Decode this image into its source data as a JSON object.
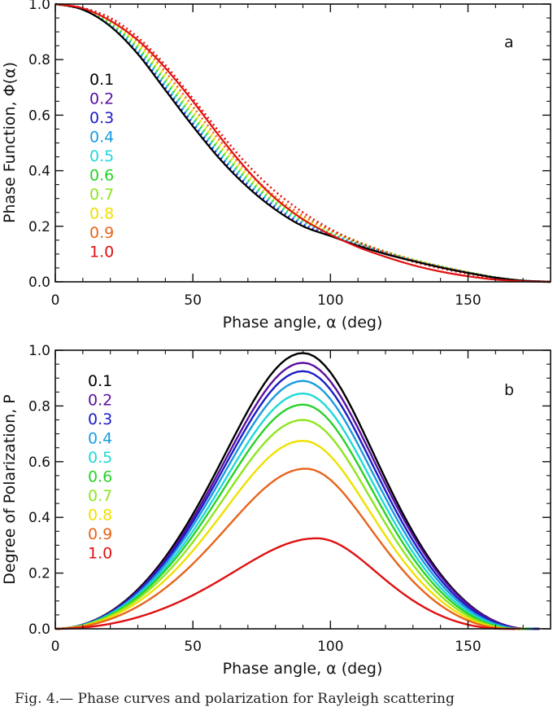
{
  "figure": {
    "caption": "Fig. 4.— Phase curves and polarization for Rayleigh scattering"
  },
  "colors": {
    "0.1": "#000000",
    "0.2": "#5a0f9e",
    "0.3": "#1c1cc8",
    "0.4": "#1a9be0",
    "0.5": "#20d8d8",
    "0.6": "#28d228",
    "0.7": "#8ee61e",
    "0.8": "#f0e000",
    "0.9": "#e8641a",
    "1.0": "#e01010"
  },
  "chart_data": [
    {
      "type": "line",
      "panel_letter": "a",
      "xlabel": "Phase angle, α (deg)",
      "ylabel": "Phase Function, Φ(α)",
      "xlim": [
        0,
        180
      ],
      "ylim": [
        0,
        1.0
      ],
      "xticks": [
        0,
        50,
        100,
        150
      ],
      "yticks": [
        0.0,
        0.2,
        0.4,
        0.6,
        0.8,
        1.0
      ],
      "ytick_labels": [
        "0.0",
        "0.2",
        "0.4",
        "0.6",
        "0.8",
        "1.0"
      ],
      "legend": [
        "0.1",
        "0.2",
        "0.3",
        "0.4",
        "0.5",
        "0.6",
        "0.7",
        "0.8",
        "0.9",
        "1.0"
      ],
      "legend_position": "upper-left",
      "x": [
        0,
        10,
        20,
        30,
        40,
        50,
        60,
        70,
        80,
        90,
        100,
        110,
        120,
        130,
        140,
        150,
        160,
        170,
        180
      ],
      "series_solid": [
        {
          "name": "0.1",
          "values": [
            1.0,
            0.98,
            0.92,
            0.82,
            0.69,
            0.56,
            0.44,
            0.34,
            0.26,
            0.2,
            0.165,
            0.13,
            0.1,
            0.075,
            0.052,
            0.032,
            0.015,
            0.004,
            0.0
          ]
        },
        {
          "name": "1.0",
          "values": [
            1.0,
            0.985,
            0.94,
            0.87,
            0.77,
            0.65,
            0.52,
            0.4,
            0.3,
            0.225,
            0.17,
            0.125,
            0.09,
            0.06,
            0.037,
            0.02,
            0.008,
            0.002,
            0.0
          ]
        }
      ],
      "series_dotted": [
        {
          "name": "0.2",
          "values": [
            1.0,
            0.98,
            0.922,
            0.824,
            0.695,
            0.565,
            0.445,
            0.345,
            0.265,
            0.205,
            0.168,
            0.133,
            0.102,
            0.076,
            0.053,
            0.033,
            0.015,
            0.004,
            0.0
          ]
        },
        {
          "name": "0.3",
          "values": [
            1.0,
            0.981,
            0.925,
            0.828,
            0.7,
            0.57,
            0.45,
            0.35,
            0.27,
            0.208,
            0.17,
            0.135,
            0.104,
            0.077,
            0.054,
            0.034,
            0.016,
            0.004,
            0.0
          ]
        },
        {
          "name": "0.4",
          "values": [
            1.0,
            0.981,
            0.927,
            0.833,
            0.707,
            0.577,
            0.457,
            0.355,
            0.275,
            0.212,
            0.172,
            0.137,
            0.106,
            0.078,
            0.055,
            0.034,
            0.016,
            0.004,
            0.0
          ]
        },
        {
          "name": "0.5",
          "values": [
            1.0,
            0.982,
            0.93,
            0.838,
            0.715,
            0.585,
            0.464,
            0.361,
            0.28,
            0.216,
            0.175,
            0.139,
            0.107,
            0.079,
            0.055,
            0.034,
            0.016,
            0.004,
            0.0
          ]
        },
        {
          "name": "0.6",
          "values": [
            1.0,
            0.982,
            0.933,
            0.844,
            0.723,
            0.594,
            0.472,
            0.368,
            0.285,
            0.221,
            0.178,
            0.141,
            0.108,
            0.08,
            0.056,
            0.035,
            0.016,
            0.004,
            0.0
          ]
        },
        {
          "name": "0.7",
          "values": [
            1.0,
            0.983,
            0.936,
            0.85,
            0.732,
            0.604,
            0.481,
            0.375,
            0.291,
            0.226,
            0.181,
            0.143,
            0.109,
            0.08,
            0.056,
            0.035,
            0.016,
            0.004,
            0.0
          ]
        },
        {
          "name": "0.8",
          "values": [
            1.0,
            0.983,
            0.939,
            0.857,
            0.743,
            0.616,
            0.492,
            0.384,
            0.298,
            0.232,
            0.184,
            0.144,
            0.109,
            0.08,
            0.056,
            0.034,
            0.016,
            0.004,
            0.0
          ]
        },
        {
          "name": "0.9",
          "values": [
            1.0,
            0.984,
            0.943,
            0.866,
            0.756,
            0.631,
            0.506,
            0.396,
            0.307,
            0.238,
            0.186,
            0.144,
            0.108,
            0.078,
            0.054,
            0.033,
            0.015,
            0.004,
            0.0
          ]
        },
        {
          "name": "1.0",
          "values": [
            1.0,
            0.986,
            0.95,
            0.88,
            0.78,
            0.66,
            0.535,
            0.42,
            0.325,
            0.25,
            0.19,
            0.142,
            0.104,
            0.073,
            0.049,
            0.029,
            0.013,
            0.003,
            0.0
          ]
        }
      ]
    },
    {
      "type": "line",
      "panel_letter": "b",
      "xlabel": "Phase angle, α (deg)",
      "ylabel": "Degree of Polarization, P",
      "xlim": [
        0,
        180
      ],
      "ylim": [
        0,
        1.0
      ],
      "xticks": [
        0,
        50,
        100,
        150
      ],
      "yticks": [
        0.0,
        0.2,
        0.4,
        0.6,
        0.8,
        1.0
      ],
      "ytick_labels": [
        "0.0",
        "0.2",
        "0.4",
        "0.6",
        "0.8",
        "1.0"
      ],
      "legend": [
        "0.1",
        "0.2",
        "0.3",
        "0.4",
        "0.5",
        "0.6",
        "0.7",
        "0.8",
        "0.9",
        "1.0"
      ],
      "legend_position": "upper-left",
      "series": [
        {
          "name": "0.1",
          "peak": 0.99,
          "peak_x": 90,
          "zero_x": 172
        },
        {
          "name": "0.2",
          "peak": 0.955,
          "peak_x": 90,
          "zero_x": 172
        },
        {
          "name": "0.3",
          "peak": 0.925,
          "peak_x": 90,
          "zero_x": 171
        },
        {
          "name": "0.4",
          "peak": 0.89,
          "peak_x": 90,
          "zero_x": 170
        },
        {
          "name": "0.5",
          "peak": 0.845,
          "peak_x": 90,
          "zero_x": 169
        },
        {
          "name": "0.6",
          "peak": 0.805,
          "peak_x": 90,
          "zero_x": 168
        },
        {
          "name": "0.7",
          "peak": 0.75,
          "peak_x": 90,
          "zero_x": 167
        },
        {
          "name": "0.8",
          "peak": 0.675,
          "peak_x": 90,
          "zero_x": 166
        },
        {
          "name": "0.9",
          "peak": 0.575,
          "peak_x": 91,
          "zero_x": 165
        },
        {
          "name": "1.0",
          "peak": 0.325,
          "peak_x": 95,
          "zero_x": 163
        }
      ]
    }
  ]
}
